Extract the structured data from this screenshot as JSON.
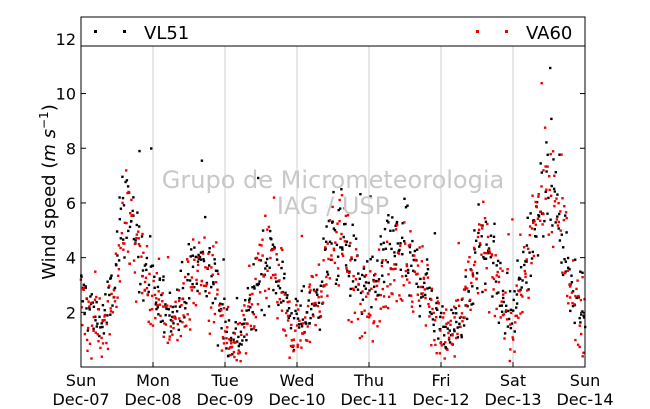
{
  "chart_data": {
    "type": "scatter",
    "ylabel_text": "Wind speed (",
    "ylabel_units": "m s",
    "ylabel_exp": "−1",
    "ylabel_close": ")",
    "ylim": [
      0.0,
      12.8
    ],
    "yticks": [
      2,
      4,
      6,
      8,
      10,
      12
    ],
    "xlim": [
      0,
      7
    ],
    "xticks": [
      {
        "pos": 0,
        "day": "Sun",
        "date": "Dec-07"
      },
      {
        "pos": 1,
        "day": "Mon",
        "date": "Dec-08"
      },
      {
        "pos": 2,
        "day": "Tue",
        "date": "Dec-09"
      },
      {
        "pos": 3,
        "day": "Wed",
        "date": "Dec-10"
      },
      {
        "pos": 4,
        "day": "Thu",
        "date": "Dec-11"
      },
      {
        "pos": 5,
        "day": "Fri",
        "date": "Dec-12"
      },
      {
        "pos": 6,
        "day": "Sat",
        "date": "Dec-13"
      },
      {
        "pos": 7,
        "day": "Sun",
        "date": "Dec-14"
      }
    ],
    "grid": "vertical",
    "legend_position": "top",
    "series": [
      {
        "name": "VL51",
        "color": "#000000",
        "profile": [
          [
            0.0,
            2.7
          ],
          [
            0.15,
            2.1
          ],
          [
            0.3,
            1.6
          ],
          [
            0.45,
            2.8
          ],
          [
            0.62,
            6.5
          ],
          [
            0.75,
            5.0
          ],
          [
            0.9,
            3.0
          ],
          [
            1.0,
            2.6
          ],
          [
            1.15,
            2.3
          ],
          [
            1.3,
            2.0
          ],
          [
            1.45,
            2.8
          ],
          [
            1.62,
            4.0
          ],
          [
            1.85,
            3.3
          ],
          [
            2.0,
            1.4
          ],
          [
            2.15,
            1.1
          ],
          [
            2.3,
            1.6
          ],
          [
            2.45,
            3.2
          ],
          [
            2.62,
            4.2
          ],
          [
            2.8,
            3.0
          ],
          [
            2.95,
            1.4
          ],
          [
            3.1,
            2.0
          ],
          [
            3.3,
            2.5
          ],
          [
            3.45,
            4.6
          ],
          [
            3.62,
            4.7
          ],
          [
            3.8,
            3.5
          ],
          [
            3.92,
            3.0
          ],
          [
            4.05,
            2.5
          ],
          [
            4.2,
            3.8
          ],
          [
            4.4,
            4.5
          ],
          [
            4.6,
            3.6
          ],
          [
            4.8,
            3.0
          ],
          [
            4.92,
            2.0
          ],
          [
            5.05,
            1.2
          ],
          [
            5.2,
            1.5
          ],
          [
            5.35,
            2.5
          ],
          [
            5.55,
            4.7
          ],
          [
            5.72,
            3.5
          ],
          [
            5.88,
            2.2
          ],
          [
            6.0,
            1.7
          ],
          [
            6.15,
            3.5
          ],
          [
            6.35,
            6.0
          ],
          [
            6.55,
            7.0
          ],
          [
            6.7,
            4.5
          ],
          [
            6.85,
            2.8
          ],
          [
            7.0,
            1.9
          ]
        ],
        "note_count": 700,
        "spread": 0.6
      },
      {
        "name": "VA60",
        "color": "#ee0000",
        "profile": [
          [
            0.0,
            2.4
          ],
          [
            0.15,
            1.9
          ],
          [
            0.3,
            1.3
          ],
          [
            0.45,
            2.4
          ],
          [
            0.62,
            5.8
          ],
          [
            0.75,
            4.6
          ],
          [
            0.9,
            2.8
          ],
          [
            1.0,
            2.3
          ],
          [
            1.15,
            2.0
          ],
          [
            1.3,
            1.7
          ],
          [
            1.45,
            2.5
          ],
          [
            1.62,
            3.6
          ],
          [
            1.85,
            3.4
          ],
          [
            2.0,
            1.3
          ],
          [
            2.15,
            1.0
          ],
          [
            2.3,
            1.5
          ],
          [
            2.45,
            3.0
          ],
          [
            2.62,
            4.0
          ],
          [
            2.8,
            2.8
          ],
          [
            2.95,
            1.2
          ],
          [
            3.1,
            1.8
          ],
          [
            3.3,
            2.4
          ],
          [
            3.45,
            4.4
          ],
          [
            3.62,
            4.5
          ],
          [
            3.8,
            3.4
          ],
          [
            3.92,
            2.8
          ],
          [
            4.05,
            2.3
          ],
          [
            4.2,
            3.6
          ],
          [
            4.4,
            4.2
          ],
          [
            4.6,
            3.3
          ],
          [
            4.8,
            2.8
          ],
          [
            4.92,
            1.8
          ],
          [
            5.05,
            1.1
          ],
          [
            5.2,
            1.4
          ],
          [
            5.35,
            2.3
          ],
          [
            5.55,
            4.4
          ],
          [
            5.72,
            3.3
          ],
          [
            5.88,
            2.0
          ],
          [
            6.0,
            1.5
          ],
          [
            6.15,
            3.3
          ],
          [
            6.35,
            5.7
          ],
          [
            6.55,
            6.7
          ],
          [
            6.7,
            4.3
          ],
          [
            6.85,
            2.6
          ],
          [
            7.0,
            1.7
          ]
        ],
        "note_count": 700,
        "spread": 0.75
      }
    ],
    "watermark": [
      "Grupo de Micrometeorologia",
      "IAG / USP"
    ]
  }
}
